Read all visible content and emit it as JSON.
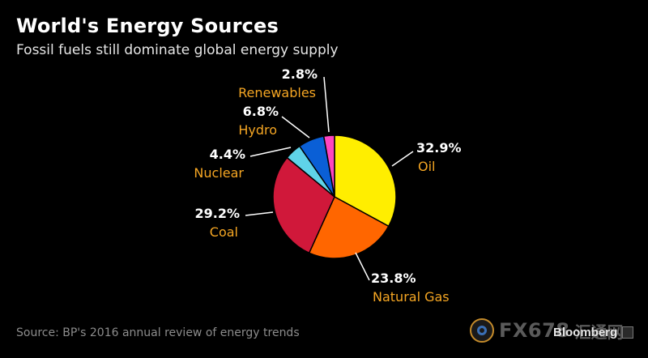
{
  "header": {
    "title": "World's Energy Sources",
    "subtitle": "Fossil fuels still dominate global energy supply"
  },
  "footer": {
    "source": "Source: BP's 2016 annual review of energy trends",
    "watermark_text": "FX678",
    "watermark_cn": "汇通网",
    "brand": "Bloomberg"
  },
  "chart_data": {
    "type": "pie",
    "title": "World's Energy Sources",
    "subtitle": "Fossil fuels still dominate global energy supply",
    "unit": "%",
    "slices": [
      {
        "label": "Oil",
        "value": 32.9,
        "value_label": "32.9%",
        "color": "#ffee00"
      },
      {
        "label": "Natural Gas",
        "value": 23.8,
        "value_label": "23.8%",
        "color": "#ff6600"
      },
      {
        "label": "Coal",
        "value": 29.2,
        "value_label": "29.2%",
        "color": "#d0183a"
      },
      {
        "label": "Nuclear",
        "value": 4.4,
        "value_label": "4.4%",
        "color": "#5fd3e8"
      },
      {
        "label": "Hydro",
        "value": 6.8,
        "value_label": "6.8%",
        "color": "#0a5fd6"
      },
      {
        "label": "Renewables",
        "value": 2.8,
        "value_label": "2.8%",
        "color": "#ff45c0"
      }
    ],
    "label_color": "#f5a623",
    "value_color": "#ffffff"
  }
}
